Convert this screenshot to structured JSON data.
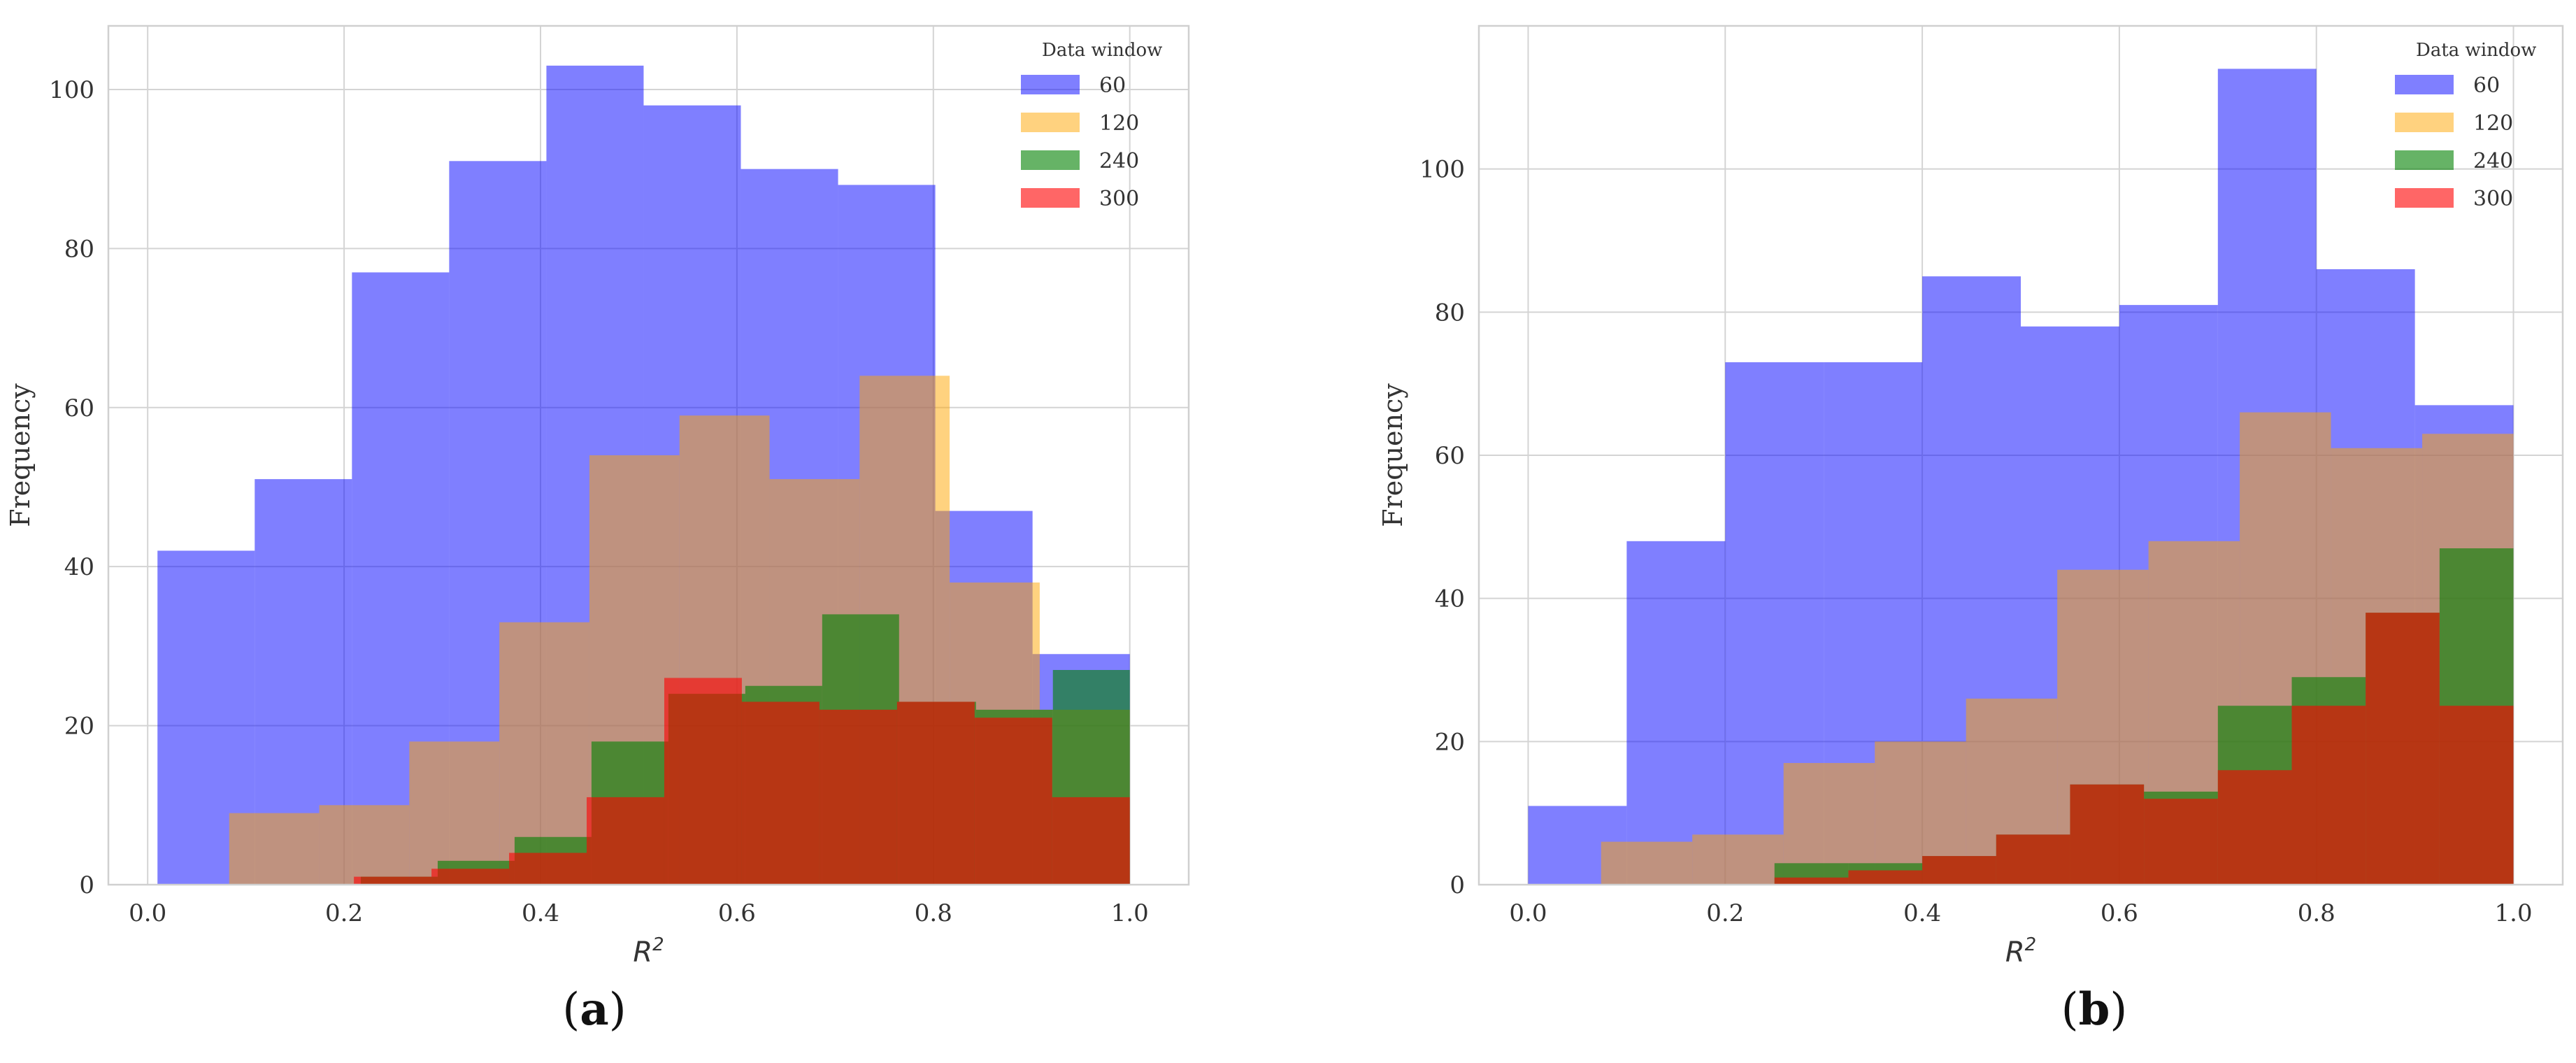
{
  "colors": {
    "series": [
      "#0000ff",
      "#ffa500",
      "#008000",
      "#ff0000"
    ],
    "grid": "#d4d4d4",
    "text": "#333333"
  },
  "chart_data": [
    {
      "panel_label": "a",
      "type": "bar",
      "histogram": true,
      "xlabel": "R",
      "xlabel_sup": "2",
      "ylabel": "Frequency",
      "xlim": [
        -0.04,
        1.06
      ],
      "ylim": [
        0,
        108
      ],
      "xticks": [
        "0.0",
        "0.2",
        "0.4",
        "0.6",
        "0.8",
        "1.0"
      ],
      "xtick_values": [
        0,
        0.2,
        0.4,
        0.6,
        0.8,
        1.0
      ],
      "yticks": [
        "0",
        "20",
        "40",
        "60",
        "80",
        "100"
      ],
      "ytick_values": [
        0,
        20,
        40,
        60,
        80,
        100
      ],
      "grid": true,
      "legend": {
        "title": "Data window",
        "placement": "top-right"
      },
      "series": [
        {
          "name": "60",
          "color": "#0000ff",
          "opacity": 0.5,
          "edges": [
            0.01,
            0.109,
            0.208,
            0.307,
            0.406,
            0.505,
            0.604,
            0.703,
            0.802,
            0.901,
            1.0
          ],
          "values": [
            42,
            51,
            77,
            91,
            103,
            98,
            90,
            88,
            47,
            29
          ]
        },
        {
          "name": "120",
          "color": "#ffa500",
          "opacity": 0.5,
          "edges": [
            0.083,
            0.1747,
            0.2664,
            0.3581,
            0.4498,
            0.5415,
            0.6332,
            0.7249,
            0.8166,
            0.9083,
            1.0
          ],
          "values": [
            9,
            10,
            18,
            33,
            54,
            59,
            51,
            64,
            38,
            22
          ]
        },
        {
          "name": "240",
          "color": "#008000",
          "opacity": 0.6,
          "edges": [
            0.217,
            0.2953,
            0.3736,
            0.4519,
            0.5302,
            0.6085,
            0.6868,
            0.7651,
            0.8434,
            0.9217,
            1.0
          ],
          "values": [
            1,
            3,
            6,
            18,
            24,
            25,
            34,
            23,
            22,
            27
          ]
        },
        {
          "name": "300",
          "color": "#ff0000",
          "opacity": 0.6,
          "edges": [
            0.21,
            0.289,
            0.368,
            0.447,
            0.526,
            0.605,
            0.684,
            0.763,
            0.842,
            0.921,
            1.0
          ],
          "values": [
            1,
            2,
            4,
            11,
            26,
            23,
            22,
            23,
            21,
            11
          ]
        }
      ]
    },
    {
      "panel_label": "b",
      "type": "bar",
      "histogram": true,
      "xlabel": "R",
      "xlabel_sup": "2",
      "ylabel": "Frequency",
      "xlim": [
        -0.05,
        1.05
      ],
      "ylim": [
        0,
        120
      ],
      "xticks": [
        "0.0",
        "0.2",
        "0.4",
        "0.6",
        "0.8",
        "1.0"
      ],
      "xtick_values": [
        0,
        0.2,
        0.4,
        0.6,
        0.8,
        1.0
      ],
      "yticks": [
        "0",
        "20",
        "40",
        "60",
        "80",
        "100"
      ],
      "ytick_values": [
        0,
        20,
        40,
        60,
        80,
        100
      ],
      "grid": true,
      "legend": {
        "title": "Data window",
        "placement": "top-right"
      },
      "series": [
        {
          "name": "60",
          "color": "#0000ff",
          "opacity": 0.5,
          "edges": [
            0.0,
            0.1,
            0.2,
            0.3,
            0.4,
            0.5,
            0.6,
            0.7,
            0.8,
            0.9,
            1.0
          ],
          "values": [
            11,
            48,
            73,
            73,
            85,
            78,
            81,
            114,
            86,
            67
          ]
        },
        {
          "name": "120",
          "color": "#ffa500",
          "opacity": 0.5,
          "edges": [
            0.074,
            0.1666,
            0.2592,
            0.3518,
            0.4444,
            0.537,
            0.6296,
            0.7222,
            0.8148,
            0.9074,
            1.0
          ],
          "values": [
            6,
            7,
            17,
            20,
            26,
            44,
            48,
            66,
            61,
            63
          ]
        },
        {
          "name": "240",
          "color": "#008000",
          "opacity": 0.6,
          "edges": [
            0.25,
            0.325,
            0.4,
            0.475,
            0.55,
            0.625,
            0.7,
            0.775,
            0.85,
            0.925,
            1.0
          ],
          "values": [
            3,
            3,
            4,
            7,
            14,
            13,
            25,
            29,
            38,
            47
          ]
        },
        {
          "name": "300",
          "color": "#ff0000",
          "opacity": 0.6,
          "edges": [
            0.25,
            0.325,
            0.4,
            0.475,
            0.55,
            0.625,
            0.7,
            0.775,
            0.85,
            0.925,
            1.0
          ],
          "values": [
            1,
            2,
            4,
            7,
            14,
            12,
            16,
            25,
            38,
            25
          ]
        }
      ]
    }
  ]
}
